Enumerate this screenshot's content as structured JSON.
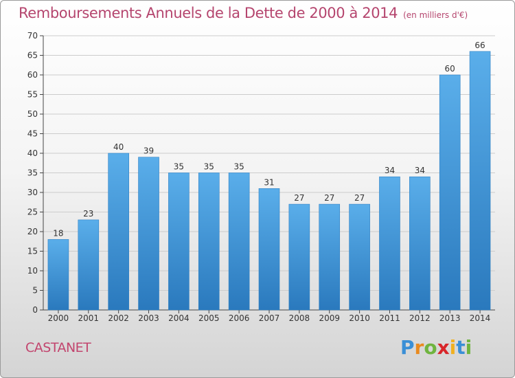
{
  "title": "Remboursements Annuels de la Dette de 2000 à 2014",
  "subtitle": "(en milliers d'€)",
  "commune": "CASTANET",
  "logo": {
    "letters": [
      "P",
      "r",
      "o",
      "x",
      "i",
      "t",
      "i"
    ],
    "colors": [
      "#3a8fd6",
      "#e98a1f",
      "#6fb43f",
      "#d8262a",
      "#f0b020",
      "#3a8fd6",
      "#6fb43f"
    ]
  },
  "colors": {
    "bar": "#4da3e6",
    "bar_dark": "#2a79bd",
    "title": "#b5456e",
    "grid": "#cccccc"
  },
  "chart_data": {
    "type": "bar",
    "categories": [
      "2000",
      "2001",
      "2002",
      "2003",
      "2004",
      "2005",
      "2006",
      "2007",
      "2008",
      "2009",
      "2010",
      "2011",
      "2012",
      "2013",
      "2014"
    ],
    "values": [
      18,
      23,
      40,
      39,
      35,
      35,
      35,
      31,
      27,
      27,
      27,
      34,
      34,
      60,
      66
    ],
    "data_labels": [
      "18",
      "23",
      "40",
      "39",
      "35",
      "35",
      "35",
      "31",
      "27",
      "27",
      "27",
      "34",
      "34",
      "60",
      "66"
    ],
    "yticks": [
      0,
      5,
      10,
      15,
      20,
      25,
      30,
      35,
      40,
      45,
      50,
      55,
      60,
      65,
      70
    ],
    "ytick_labels": [
      "0",
      "5",
      "10",
      "15",
      "20",
      "25",
      "30",
      "35",
      "40",
      "45",
      "50",
      "55",
      "60",
      "65",
      "70"
    ],
    "ylim": [
      0,
      70
    ],
    "xlabel": "",
    "ylabel": "",
    "grid": true
  }
}
